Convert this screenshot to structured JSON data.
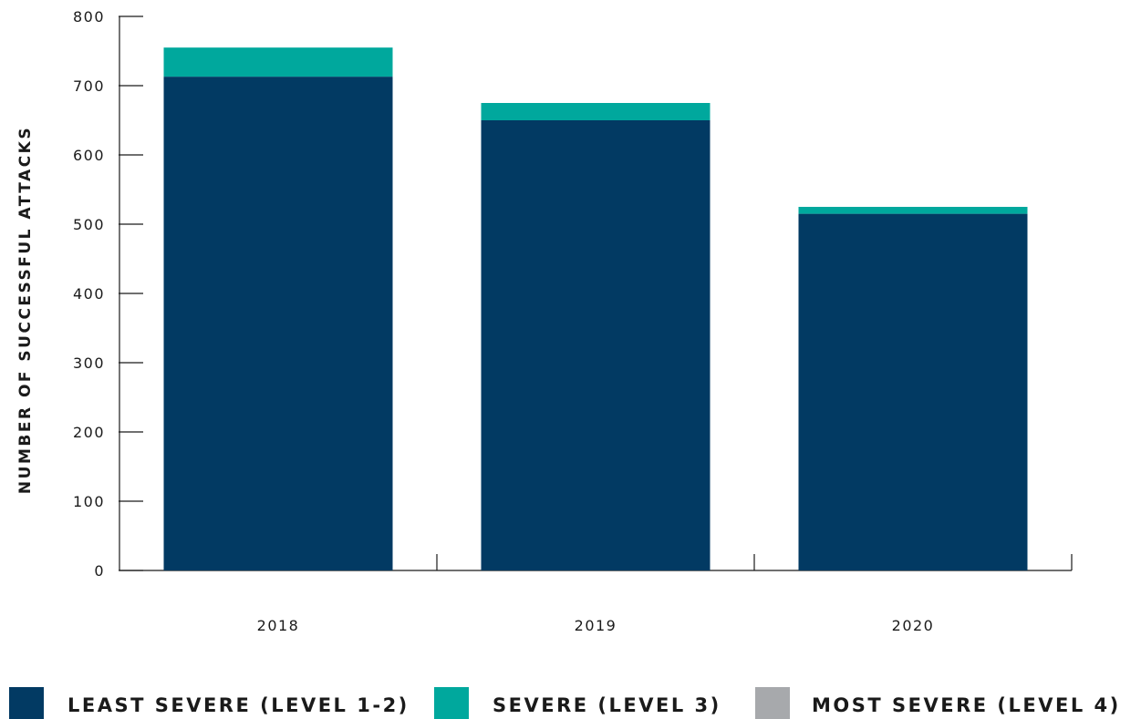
{
  "chart_data": {
    "type": "bar",
    "stacked": true,
    "title": "",
    "xlabel": "",
    "ylabel": "NUMBER OF SUCCESSFUL ATTACKS",
    "ylim": [
      0,
      800
    ],
    "yticks": [
      0,
      100,
      200,
      300,
      400,
      500,
      600,
      700,
      800
    ],
    "categories": [
      "2018",
      "2019",
      "2020"
    ],
    "series": [
      {
        "name": "LEAST SEVERE (LEVEL 1-2)",
        "color": "#023a63",
        "values": [
          713,
          650,
          515
        ]
      },
      {
        "name": "SEVERE (LEVEL 3)",
        "color": "#00a89d",
        "values": [
          42,
          25,
          10
        ]
      },
      {
        "name": "MOST SEVERE (LEVEL 4)",
        "color": "#a7a9ac",
        "values": [
          0,
          0,
          0
        ]
      }
    ],
    "grid": false,
    "legend_position": "bottom"
  }
}
